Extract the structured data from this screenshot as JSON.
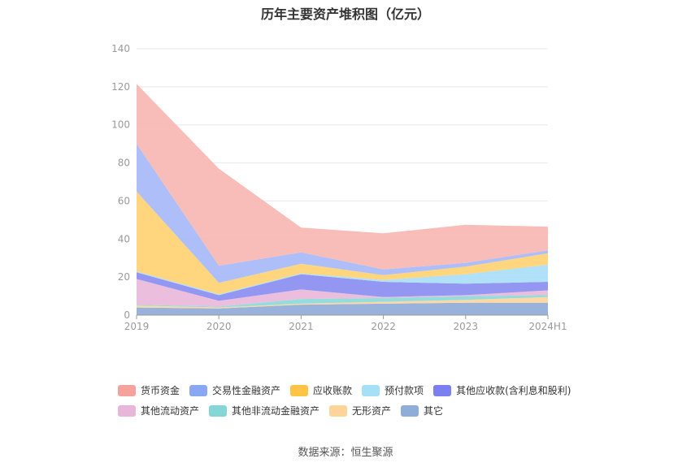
{
  "chart_data": {
    "type": "area",
    "stacked": true,
    "title": "历年主要资产堆积图（亿元）",
    "categories": [
      "2019",
      "2020",
      "2021",
      "2022",
      "2023",
      "2024H1"
    ],
    "ylim": [
      0,
      140
    ],
    "yticks": [
      0,
      20,
      40,
      60,
      80,
      100,
      120,
      140
    ],
    "grid": true,
    "legend_position": "bottom",
    "series": [
      {
        "name": "其它",
        "color": "#8fabd9",
        "values": [
          4,
          3.5,
          5.5,
          6,
          6.5,
          6.5
        ]
      },
      {
        "name": "无形资产",
        "color": "#ffd49a",
        "values": [
          1,
          0.5,
          0.5,
          1,
          1.5,
          3
        ]
      },
      {
        "name": "其他非流动金融资产",
        "color": "#8cd9d9",
        "values": [
          0.5,
          0.5,
          2.5,
          2,
          2,
          1
        ]
      },
      {
        "name": "其他流动资产",
        "color": "#e8b8d9",
        "values": [
          13.5,
          3,
          5,
          0.5,
          0.5,
          2.5
        ]
      },
      {
        "name": "其他应收款(含利息和股利)",
        "color": "#8a8ef0",
        "values": [
          3.5,
          3,
          8,
          8,
          6,
          4.5
        ]
      },
      {
        "name": "预付款项",
        "color": "#a9def7",
        "values": [
          0.5,
          0.5,
          0.5,
          1,
          5,
          9
        ]
      },
      {
        "name": "应收账款",
        "color": "#ffd272",
        "values": [
          42,
          6,
          5,
          2.5,
          4,
          6
        ]
      },
      {
        "name": "交易性金融资产",
        "color": "#a6b8f7",
        "values": [
          25,
          9,
          6,
          3,
          2,
          1.5
        ]
      },
      {
        "name": "货币资金",
        "color": "#f7b7b2",
        "values": [
          31.5,
          51,
          13,
          19,
          20,
          12.5
        ]
      }
    ],
    "legend_order": [
      "货币资金",
      "交易性金融资产",
      "应收账款",
      "预付款项",
      "其他应收款(含利息和股利)",
      "其他流动资产",
      "其他非流动金融资产",
      "无形资产",
      "其它"
    ],
    "legend_colors": {
      "货币资金": "#f4a29b",
      "交易性金融资产": "#8aa7f3",
      "应收账款": "#ffc445",
      "预付款项": "#a6e0f6",
      "其他应收款(含利息和股利)": "#7b7ff0",
      "其他流动资产": "#e7b6d8",
      "其他非流动金融资产": "#85d6d6",
      "无形资产": "#ffd49a",
      "其它": "#8fadd9"
    }
  },
  "source_text": "数据来源：恒生聚源"
}
